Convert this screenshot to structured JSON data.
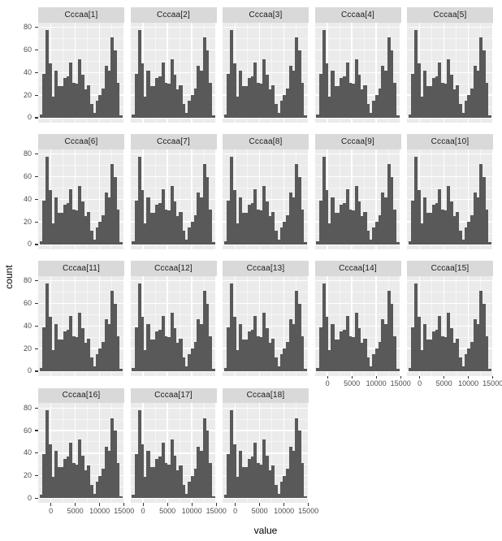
{
  "chart_data": {
    "type": "histogram-facets",
    "title": "",
    "xlabel": "value",
    "ylabel": "count",
    "facets": [
      "Cccaa[1]",
      "Cccaa[2]",
      "Cccaa[3]",
      "Cccaa[4]",
      "Cccaa[5]",
      "Cccaa[6]",
      "Cccaa[7]",
      "Cccaa[8]",
      "Cccaa[9]",
      "Cccaa[10]",
      "Cccaa[11]",
      "Cccaa[12]",
      "Cccaa[13]",
      "Cccaa[14]",
      "Cccaa[15]",
      "Cccaa[16]",
      "Cccaa[17]",
      "Cccaa[18]"
    ],
    "bin_start": -2300,
    "bin_width": 605,
    "values": [
      3,
      39,
      78,
      48,
      19,
      42,
      28,
      28,
      35,
      37,
      49,
      31,
      30,
      52,
      38,
      25,
      29,
      12,
      4,
      15,
      20,
      26,
      46,
      42,
      71,
      60,
      31,
      2
    ],
    "x_ticks": [
      0,
      5000,
      10000,
      15000
    ],
    "x_tick_labels": [
      "0",
      "5000",
      "10000",
      "15000"
    ],
    "x_minor": [
      2500,
      7500,
      12500
    ],
    "y_ticks": [
      0,
      20,
      40,
      60,
      80
    ],
    "y_tick_labels": [
      "0",
      "20",
      "40",
      "60",
      "80"
    ],
    "y_minor": [
      10,
      30,
      50,
      70
    ],
    "xlim": [
      -2600,
      15050
    ],
    "ylim": [
      -4,
      84.5
    ],
    "grid": true,
    "legend": "none",
    "colors": {
      "bar": "#595959",
      "panel_bg": "#ebebeb",
      "strip_bg": "#d9d9d9",
      "gridline": "#ffffff",
      "axis_text": "#4d4d4d",
      "tick_mark": "#333333",
      "axis_title": "#000000",
      "strip_text": "#1a1a1a"
    }
  }
}
